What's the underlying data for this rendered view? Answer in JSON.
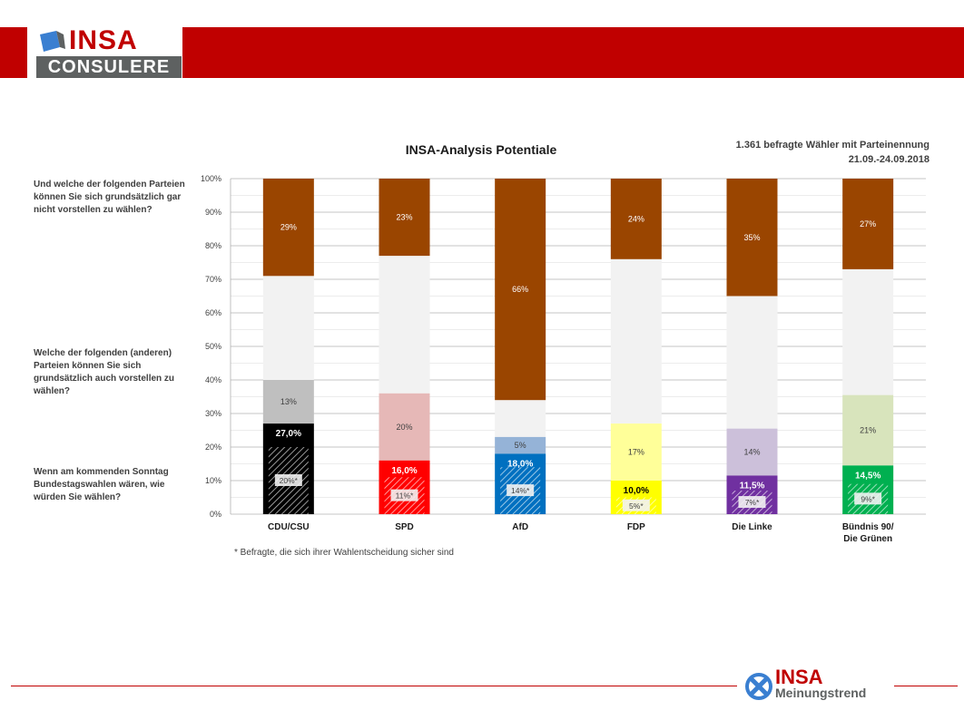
{
  "header": {
    "logo_insa": "INSA",
    "logo_consulere": "CONSULERE"
  },
  "chart_meta": {
    "respondents": "1.361 befragte Wähler mit Parteinennung",
    "period": "21.09.-24.09.2018"
  },
  "questions": {
    "q_not": "Und welche der folgenden Parteien können Sie sich grundsätzlich gar nicht vorstellen zu wählen?",
    "q_also": "Welche der folgenden (anderen) Parteien können Sie sich grundsätzlich auch vorstellen zu wählen?",
    "q_vote": "Wenn am kommenden Sonntag Bundestagswahlen wären, wie würden Sie wählen?"
  },
  "footnote": "* Befragte, die sich ihrer Wahlentscheidung sicher sind",
  "footer": {
    "brand_insa": "INSA",
    "brand_sub": "Meinungstrend"
  },
  "colors": {
    "header_red": "#c00000",
    "never_brown": "#9a4500",
    "gap_grey": "#f2f2f2",
    "grid": "#b0b0b0"
  },
  "chart_data": {
    "type": "bar",
    "stacked": true,
    "title": "INSA-Analysis Potentiale",
    "ylim": [
      0,
      100
    ],
    "yticks": [
      "0%",
      "10%",
      "20%",
      "30%",
      "40%",
      "50%",
      "60%",
      "70%",
      "80%",
      "90%",
      "100%"
    ],
    "grid": true,
    "categories": [
      "CDU/CSU",
      "SPD",
      "AfD",
      "FDP",
      "Die Linke",
      "Bündnis 90/\nDie Grünen"
    ],
    "party_colors": [
      "#000000",
      "#ff0000",
      "#0070c0",
      "#ffff00",
      "#7030a0",
      "#00b050"
    ],
    "potential_colors": [
      "#bfbfbf",
      "#e6b8b7",
      "#95b3d7",
      "#ffff99",
      "#ccc0da",
      "#d8e4bc"
    ],
    "vote": [
      27.0,
      16.0,
      18.0,
      10.0,
      11.5,
      14.5
    ],
    "vote_labels": [
      "27,0%",
      "16,0%",
      "18,0%",
      "10,0%",
      "11,5%",
      "14,5%"
    ],
    "sure": [
      20,
      11,
      14,
      5,
      7,
      9
    ],
    "sure_labels": [
      "20%*",
      "11%*",
      "14%*",
      "5%*",
      "7%*",
      "9%*"
    ],
    "potential": [
      13,
      20,
      5,
      17,
      14,
      21
    ],
    "potential_labels": [
      "13%",
      "20%",
      "5%",
      "17%",
      "14%",
      "21%"
    ],
    "never": [
      29,
      23,
      66,
      24,
      35,
      27
    ],
    "never_labels": [
      "29%",
      "23%",
      "66%",
      "24%",
      "35%",
      "27%"
    ]
  }
}
